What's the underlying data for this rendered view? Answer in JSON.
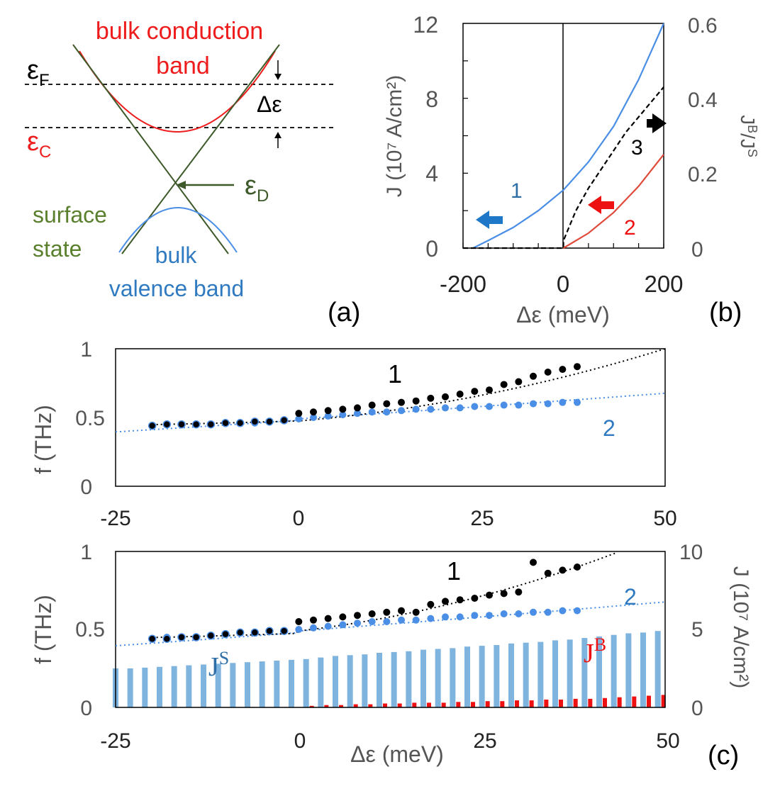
{
  "colors": {
    "red": "#ee1c1c",
    "green_dark": "#3e5a2a",
    "green_label": "#5a7f2d",
    "blue_line": "#4a8ee6",
    "blue_label": "#2f7ac0",
    "blue_panel": "#2e6ea6",
    "blue_bar": "#7fb4df",
    "red_bar": "#ee1111",
    "red_curve": "#e04a3a",
    "arrow_blue": "#1f77c8",
    "gray_text": "#666666",
    "black": "#000000"
  },
  "panel_a": {
    "label": "(a)",
    "conduction_label_1": "bulk conduction",
    "conduction_label_2": "band",
    "fermi_symbol": "ε",
    "fermi_sub": "F",
    "conduction_symbol": "ε",
    "conduction_sub": "C",
    "dirac_symbol": "ε",
    "dirac_sub": "D",
    "delta_label": "Δε",
    "surface_label_1": "surface",
    "surface_label_2": "state",
    "valence_label_1": "bulk",
    "valence_label_2": "valence band"
  },
  "chart_data": [
    {
      "id": "b",
      "type": "line",
      "panel_label": "(b)",
      "xlabel": "Δε (meV)",
      "ylabel_left": "J (10⁷ A/cm²)",
      "ylabel_right": "Jᴮ/Jˢ",
      "xlim": [
        -200,
        200
      ],
      "ylim_left": [
        0,
        12
      ],
      "ylim_right": [
        0,
        0.6
      ],
      "xticks": [
        "-200",
        "0",
        "200"
      ],
      "yticks_left": [
        "0",
        "4",
        "8",
        "12"
      ],
      "yticks_right": [
        "0",
        "0.2",
        "0.4",
        "0.6"
      ],
      "series": [
        {
          "name": "1",
          "axis": "left",
          "style": "solid blue",
          "x": [
            -180,
            -150,
            -100,
            -50,
            0,
            50,
            100,
            150,
            200
          ],
          "y": [
            0,
            0.4,
            1.1,
            2.0,
            3.1,
            4.6,
            6.5,
            9.0,
            12.0
          ]
        },
        {
          "name": "2",
          "axis": "left",
          "style": "solid red",
          "x": [
            0,
            50,
            100,
            150,
            200
          ],
          "y": [
            0,
            0.8,
            1.9,
            3.3,
            5.0
          ]
        },
        {
          "name": "3",
          "axis": "right",
          "style": "dashed black",
          "x": [
            -200,
            0,
            0.1,
            25,
            50,
            75,
            100,
            125,
            150,
            175,
            200
          ],
          "y": [
            0,
            0,
            0.02,
            0.1,
            0.16,
            0.21,
            0.26,
            0.31,
            0.35,
            0.39,
            0.43
          ]
        }
      ],
      "annotations": [
        "1",
        "2",
        "3"
      ]
    },
    {
      "id": "c_top",
      "type": "scatter",
      "xlim": [
        -25,
        50
      ],
      "ylim": [
        0,
        1
      ],
      "ylabel": "f (THz)",
      "xticks": [
        "-25",
        "0",
        "25",
        "50"
      ],
      "yticks": [
        "0",
        "0.5",
        "1"
      ],
      "series": [
        {
          "name": "1",
          "color": "black",
          "x": [
            -20,
            -18,
            -16,
            -14,
            -12,
            -10,
            -8,
            -6,
            -4,
            -2,
            0,
            2,
            4,
            6,
            8,
            10,
            12,
            14,
            16,
            18,
            20,
            22,
            24,
            26,
            28,
            30,
            32,
            34,
            36,
            38
          ],
          "y": [
            0.44,
            0.45,
            0.45,
            0.45,
            0.45,
            0.46,
            0.46,
            0.47,
            0.47,
            0.48,
            0.53,
            0.54,
            0.55,
            0.56,
            0.57,
            0.59,
            0.6,
            0.61,
            0.62,
            0.64,
            0.65,
            0.67,
            0.69,
            0.7,
            0.74,
            0.76,
            0.8,
            0.83,
            0.85,
            0.87
          ]
        },
        {
          "name": "2",
          "color": "blue",
          "x": [
            -20,
            -18,
            -16,
            -14,
            -12,
            -10,
            -8,
            -6,
            -4,
            -2,
            0,
            2,
            4,
            6,
            8,
            10,
            12,
            14,
            16,
            18,
            20,
            22,
            24,
            26,
            28,
            30,
            32,
            34,
            36,
            38
          ],
          "y": [
            0.44,
            0.45,
            0.45,
            0.45,
            0.45,
            0.46,
            0.46,
            0.46,
            0.47,
            0.48,
            0.49,
            0.5,
            0.51,
            0.52,
            0.53,
            0.54,
            0.54,
            0.55,
            0.56,
            0.56,
            0.57,
            0.57,
            0.58,
            0.58,
            0.59,
            0.59,
            0.6,
            0.6,
            0.61,
            0.61
          ]
        }
      ],
      "annotations": [
        "1",
        "2"
      ]
    },
    {
      "id": "c_bottom",
      "type": "scatter",
      "panel_label": "(c)",
      "xlim": [
        -25,
        50
      ],
      "ylim": [
        0,
        1
      ],
      "ylim_right": [
        0,
        10
      ],
      "xlabel": "Δε (meV)",
      "ylabel": "f (THz)",
      "ylabel_right": "J (10⁷ A/cm²)",
      "xticks": [
        "-25",
        "0",
        "25",
        "50"
      ],
      "yticks": [
        "0",
        "0.5",
        "1"
      ],
      "yticks_right": [
        "0",
        "5",
        "10"
      ],
      "series": [
        {
          "name": "1",
          "color": "black",
          "x": [
            -20,
            -18,
            -16,
            -14,
            -12,
            -10,
            -8,
            -6,
            -4,
            -2,
            0,
            2,
            4,
            6,
            8,
            10,
            12,
            14,
            16,
            18,
            20,
            22,
            24,
            26,
            28,
            30,
            32,
            34,
            36,
            38
          ],
          "y": [
            0.44,
            0.44,
            0.45,
            0.45,
            0.46,
            0.47,
            0.48,
            0.48,
            0.49,
            0.49,
            0.55,
            0.56,
            0.57,
            0.58,
            0.59,
            0.6,
            0.61,
            0.62,
            0.61,
            0.66,
            0.68,
            0.69,
            0.7,
            0.72,
            0.73,
            0.74,
            0.93,
            0.86,
            0.88,
            0.9
          ]
        },
        {
          "name": "2",
          "color": "blue",
          "x": [
            -20,
            -18,
            -16,
            -14,
            -12,
            -10,
            -8,
            -6,
            -4,
            -2,
            0,
            2,
            4,
            6,
            8,
            10,
            12,
            14,
            16,
            18,
            20,
            22,
            24,
            26,
            28,
            30,
            32,
            34,
            36,
            38
          ],
          "y": [
            0.44,
            0.45,
            0.45,
            0.45,
            0.46,
            0.47,
            0.48,
            0.48,
            0.49,
            0.49,
            0.5,
            0.51,
            0.52,
            0.53,
            0.54,
            0.55,
            0.55,
            0.56,
            0.56,
            0.57,
            0.58,
            0.58,
            0.59,
            0.59,
            0.6,
            0.6,
            0.61,
            0.61,
            0.62,
            0.62
          ]
        },
        {
          "name": "J^S",
          "type": "bar",
          "axis": "right",
          "color": "light blue",
          "x": [
            -25,
            -23,
            -21,
            -19,
            -17,
            -15,
            -13,
            -11,
            -9,
            -7,
            -5,
            -3,
            -1,
            1,
            3,
            5,
            7,
            9,
            11,
            13,
            15,
            17,
            19,
            21,
            23,
            25,
            27,
            29,
            31,
            33,
            35,
            37,
            39,
            41,
            43,
            45,
            47,
            49
          ],
          "y": [
            2.5,
            2.5,
            2.55,
            2.6,
            2.65,
            2.7,
            2.75,
            2.8,
            2.85,
            2.9,
            2.95,
            3.0,
            3.05,
            3.1,
            3.2,
            3.3,
            3.35,
            3.4,
            3.5,
            3.55,
            3.6,
            3.7,
            3.75,
            3.8,
            3.9,
            3.95,
            4.0,
            4.1,
            4.15,
            4.2,
            4.3,
            4.35,
            4.45,
            4.55,
            4.65,
            4.75,
            4.8,
            4.9
          ]
        },
        {
          "name": "J^B",
          "type": "bar",
          "axis": "right",
          "color": "red",
          "x": [
            1,
            3,
            5,
            7,
            9,
            11,
            13,
            15,
            17,
            19,
            21,
            23,
            25,
            27,
            29,
            31,
            33,
            35,
            37,
            39,
            41,
            43,
            45,
            47,
            49
          ],
          "y": [
            0.1,
            0.15,
            0.15,
            0.2,
            0.2,
            0.25,
            0.25,
            0.3,
            0.3,
            0.3,
            0.35,
            0.35,
            0.4,
            0.4,
            0.45,
            0.45,
            0.5,
            0.5,
            0.55,
            0.55,
            0.6,
            0.65,
            0.7,
            0.75,
            0.8
          ]
        }
      ],
      "annotations": [
        "1",
        "2",
        "J^S",
        "J^B"
      ]
    }
  ],
  "labels": {
    "b_curve1": "1",
    "b_curve2": "2",
    "b_curve3": "3",
    "c1_curve1": "1",
    "c1_curve2": "2",
    "c2_curve1": "1",
    "c2_curve2": "2",
    "js_main": "J",
    "js_sup": "S",
    "jb_main": "J",
    "jb_sup": "B",
    "b_ylabel_right_main": "J",
    "b_ylabel_right_sup1": "B",
    "b_ylabel_right_mid": "/J",
    "b_ylabel_right_sup2": "S"
  }
}
